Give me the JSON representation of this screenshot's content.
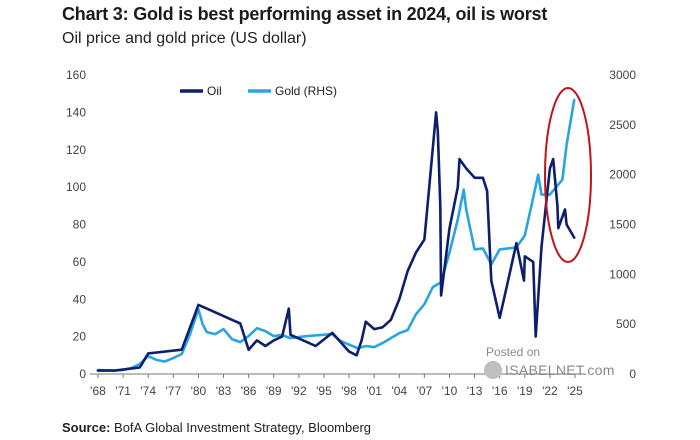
{
  "header": {
    "title": "Chart 3: Gold is best performing asset in 2024, oil is worst",
    "subtitle": "Oil price and gold price (US dollar)"
  },
  "footer": {
    "source_label": "Source:",
    "source_text": "BofA Global Investment Strategy, Bloomberg"
  },
  "watermark": {
    "line1": "Posted on",
    "line2": "ISABELNET.com"
  },
  "colors": {
    "oil": "#0d1f6b",
    "gold": "#2aa4e0",
    "highlight": "#c0141b",
    "axis": "#777777"
  },
  "chart_data": {
    "type": "line",
    "title": "Oil price and gold price (US dollar)",
    "legend": [
      "Oil",
      "Gold (RHS)"
    ],
    "legend_position": "top-left",
    "grid": false,
    "x_ticks": [
      "'68",
      "'71",
      "'74",
      "'77",
      "'80",
      "'83",
      "'86",
      "'89",
      "'92",
      "'95",
      "'98",
      "'01",
      "'04",
      "'07",
      "'10",
      "'13",
      "'16",
      "'19",
      "'22",
      "'25"
    ],
    "x_range": [
      1968,
      2025
    ],
    "y_left": {
      "range": [
        0,
        160
      ],
      "ticks": [
        0,
        20,
        40,
        60,
        80,
        100,
        120,
        140,
        160
      ]
    },
    "y_right": {
      "range": [
        0,
        3000
      ],
      "ticks": [
        0,
        500,
        1000,
        1500,
        2000,
        2500,
        3000
      ]
    },
    "series": [
      {
        "name": "Oil",
        "axis": "left",
        "x": [
          1968,
          1970,
          1973,
          1974,
          1975,
          1978,
          1979,
          1980,
          1981,
          1982,
          1984,
          1985,
          1986,
          1987,
          1988,
          1989,
          1990,
          1990.8,
          1991,
          1993,
          1994,
          1996,
          1998,
          1998.9,
          1999.5,
          2000,
          2001,
          2002,
          2003,
          2004,
          2005,
          2006,
          2007,
          2008.4,
          2008.6,
          2008.9,
          2009,
          2010,
          2011,
          2011.2,
          2012,
          2013,
          2014,
          2014.5,
          2015,
          2016,
          2017,
          2018,
          2018.9,
          2019,
          2020,
          2020.3,
          2021,
          2022,
          2022.4,
          2022.9,
          2023,
          2023.8,
          2024,
          2024.9
        ],
        "y": [
          1.8,
          1.8,
          3.5,
          11,
          11.5,
          13,
          25,
          37,
          35,
          33,
          29,
          27,
          13,
          18,
          15,
          18,
          20,
          35,
          21,
          17,
          15,
          22,
          12,
          10,
          18,
          28,
          24,
          25,
          29,
          40,
          55,
          65,
          72,
          140,
          130,
          90,
          42,
          78,
          100,
          115,
          110,
          105,
          105,
          98,
          50,
          30,
          50,
          70,
          50,
          63,
          60,
          20,
          68,
          110,
          115,
          90,
          78,
          88,
          80,
          73
        ]
      },
      {
        "name": "Gold (RHS)",
        "axis": "right",
        "x": [
          1968,
          1970,
          1971,
          1972,
          1973,
          1974,
          1975,
          1976,
          1977,
          1978,
          1979,
          1980,
          1980.5,
          1981,
          1982,
          1983,
          1984,
          1985,
          1986,
          1987,
          1988,
          1989,
          1990,
          1991,
          1993,
          1996,
          1997,
          1999,
          2000,
          2001,
          2002,
          2003,
          2004,
          2005,
          2006,
          2007,
          2008,
          2009,
          2010,
          2011,
          2011.7,
          2012,
          2013,
          2014,
          2015,
          2016,
          2017,
          2018,
          2019,
          2020,
          2020.6,
          2021,
          2022,
          2023,
          2023.5,
          2024,
          2024.9
        ],
        "y": [
          40,
          35,
          40,
          60,
          100,
          180,
          140,
          125,
          160,
          200,
          400,
          650,
          500,
          420,
          400,
          450,
          350,
          320,
          380,
          460,
          430,
          380,
          390,
          360,
          380,
          400,
          330,
          260,
          280,
          270,
          310,
          360,
          410,
          440,
          600,
          700,
          870,
          920,
          1220,
          1550,
          1850,
          1650,
          1250,
          1260,
          1100,
          1250,
          1260,
          1270,
          1390,
          1770,
          2000,
          1800,
          1800,
          1900,
          1950,
          2300,
          2750
        ]
      }
    ]
  }
}
